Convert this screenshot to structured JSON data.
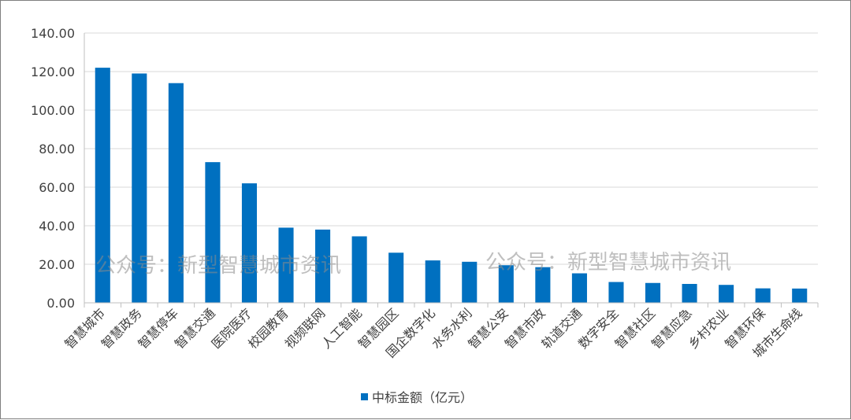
{
  "chart_data": {
    "type": "bar",
    "categories": [
      "智慧城市",
      "智慧政务",
      "智慧停车",
      "智慧交通",
      "医院医疗",
      "校园教育",
      "视频联网",
      "人工智能",
      "智慧园区",
      "国企数字化",
      "水务水利",
      "智慧公安",
      "智慧市政",
      "轨道交通",
      "数字安全",
      "智慧社区",
      "智慧应急",
      "乡村农业",
      "智慧环保",
      "城市生命线"
    ],
    "series": [
      {
        "name": "中标金额（亿元）",
        "color": "#0070c0",
        "values": [
          122,
          119,
          114,
          73,
          62,
          39,
          38,
          34.5,
          26,
          22,
          21.3,
          19.5,
          18.5,
          15.3,
          10.8,
          10.3,
          9.8,
          9.3,
          7.5,
          7.4
        ]
      }
    ],
    "ylim": [
      0,
      140
    ],
    "yticks": [
      0,
      20,
      40,
      60,
      80,
      100,
      120,
      140
    ],
    "ytick_labels": [
      "0.00",
      "20.00",
      "40.00",
      "60.00",
      "80.00",
      "100.00",
      "120.00",
      "140.00"
    ],
    "grid": true,
    "legend_position": "bottom"
  },
  "watermarks": [
    "公众号：新型智慧城市资讯",
    "公众号：新型智慧城市资讯"
  ]
}
